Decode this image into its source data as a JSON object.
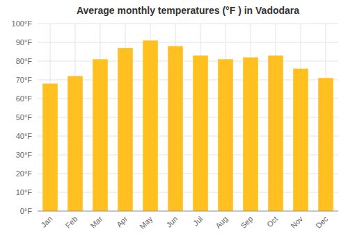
{
  "chart_data": {
    "type": "bar",
    "title": "Average monthly temperatures (°F ) in Vadodara",
    "categories": [
      "Jan",
      "Feb",
      "Mar",
      "Apr",
      "May",
      "Jun",
      "Jul",
      "Aug",
      "Sep",
      "Oct",
      "Nov",
      "Dec"
    ],
    "values": [
      68,
      72,
      81,
      87,
      91,
      88,
      83,
      81,
      82,
      83,
      76,
      71
    ],
    "color": "#FFC020",
    "ylim": [
      0,
      100
    ],
    "yticks": [
      {
        "value": 0,
        "label": "0°F"
      },
      {
        "value": 10,
        "label": "10°F"
      },
      {
        "value": 20,
        "label": "20°F"
      },
      {
        "value": 30,
        "label": "30°F"
      },
      {
        "value": 40,
        "label": "40°F"
      },
      {
        "value": 50,
        "label": "50°F"
      },
      {
        "value": 60,
        "label": "60°F"
      },
      {
        "value": 70,
        "label": "70°F"
      },
      {
        "value": 80,
        "label": "80°F"
      },
      {
        "value": 90,
        "label": "90°F"
      },
      {
        "value": 100,
        "label": "100°F"
      }
    ],
    "grid": true
  }
}
